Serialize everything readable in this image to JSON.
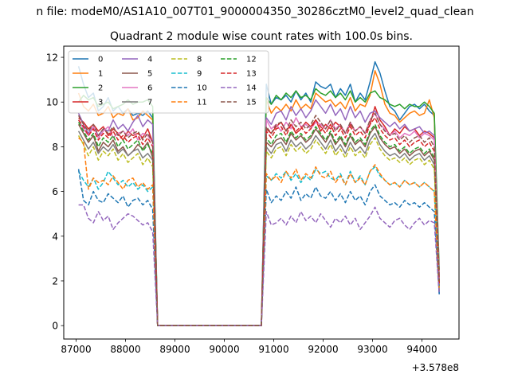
{
  "chart_data": {
    "type": "line",
    "suptitle": "n file: modeM0/AS1A10_007T01_9000004350_30286cztM0_level2_quad_clean",
    "title": "Quadrant 2 module wise count rates with 100.0s bins.",
    "xlabel": "",
    "ylabel": "",
    "offset_text": "+3.578e8",
    "xlim": [
      86750,
      94750
    ],
    "ylim": [
      -0.6,
      12.5
    ],
    "x_ticks": [
      87000,
      88000,
      89000,
      90000,
      91000,
      92000,
      93000,
      94000
    ],
    "x_tick_labels": [
      "87000",
      "88000",
      "89000",
      "90000",
      "91000",
      "92000",
      "93000",
      "94000"
    ],
    "y_ticks": [
      0,
      2,
      4,
      6,
      8,
      10,
      12
    ],
    "y_tick_labels": [
      "0",
      "2",
      "4",
      "6",
      "8",
      "10",
      "12"
    ],
    "grid": false,
    "legend": {
      "placement": "top-left",
      "columns": 4
    },
    "x_start": 87050,
    "x_step": 100,
    "series": [
      {
        "name": "0",
        "color": "#1f77b4",
        "dash": "solid",
        "seg1": [
          11.6,
          10.8,
          10.2,
          10.4,
          9.6,
          9.8,
          10.2,
          9.6,
          9.8,
          9.5,
          9.7,
          9.4,
          9.5,
          9.4,
          9.6,
          9.3
        ],
        "seg2": [
          10.8,
          9.9,
          10.2,
          10.1,
          10.3,
          10.0,
          10.5,
          10.1,
          10.4,
          10.0,
          10.9,
          10.7,
          10.6,
          10.8,
          10.2,
          10.6,
          10.3,
          10.8,
          10.0,
          10.4,
          10.1,
          10.9,
          11.8,
          11.3,
          10.5,
          9.8,
          9.6,
          9.2,
          9.5,
          9.8,
          9.9,
          9.7,
          9.9,
          9.6,
          9.4,
          1.4
        ]
      },
      {
        "name": "1",
        "color": "#ff7f0e",
        "dash": "solid",
        "seg1": [
          10.4,
          9.8,
          9.6,
          9.9,
          9.4,
          9.5,
          9.8,
          9.3,
          9.5,
          9.4,
          9.7,
          9.2,
          9.3,
          9.6,
          9.4,
          9.2
        ],
        "seg2": [
          10.1,
          9.5,
          9.8,
          9.6,
          9.9,
          9.6,
          10.1,
          9.7,
          9.9,
          9.7,
          10.4,
          10.2,
          10.0,
          10.1,
          9.8,
          10.0,
          9.7,
          10.2,
          9.6,
          9.9,
          9.8,
          10.3,
          11.4,
          10.8,
          9.9,
          9.5,
          9.4,
          9.1,
          9.3,
          9.5,
          9.6,
          9.4,
          9.5,
          10.1,
          9.3,
          1.9
        ]
      },
      {
        "name": "2",
        "color": "#2ca02c",
        "dash": "solid",
        "seg1": [
          10.0,
          10.3,
          10.1,
          10.2,
          9.8,
          9.9,
          10.0,
          9.7,
          9.8,
          9.9,
          10.1,
          9.9,
          10.0,
          10.0,
          10.1,
          9.8
        ],
        "seg2": [
          10.2,
          9.9,
          10.3,
          10.1,
          10.4,
          10.2,
          10.5,
          10.2,
          10.3,
          10.1,
          10.6,
          10.4,
          10.3,
          10.5,
          10.2,
          10.4,
          10.1,
          10.5,
          10.0,
          10.2,
          10.0,
          10.4,
          10.5,
          10.2,
          10.1,
          9.9,
          9.8,
          9.9,
          9.7,
          9.9,
          9.8,
          9.8,
          10.0,
          9.8,
          9.5,
          2.5
        ]
      },
      {
        "name": "3",
        "color": "#d62728",
        "dash": "solid",
        "seg1": [
          9.3,
          9.1,
          8.8,
          9.0,
          8.7,
          8.9,
          8.5,
          8.8,
          8.6,
          8.3,
          8.7,
          8.5,
          8.6,
          8.4,
          8.8,
          8.2
        ],
        "seg2": [
          8.8,
          8.6,
          8.9,
          9.1,
          8.7,
          9.0,
          8.6,
          8.8,
          9.1,
          8.9,
          9.2,
          8.7,
          9.0,
          8.8,
          9.1,
          8.9,
          8.6,
          9.0,
          8.7,
          8.9,
          8.6,
          9.0,
          9.8,
          9.2,
          8.9,
          8.5,
          8.8,
          8.6,
          8.9,
          8.7,
          8.8,
          8.5,
          8.7,
          8.6,
          8.4,
          2.2
        ]
      },
      {
        "name": "4",
        "color": "#9467bd",
        "dash": "solid",
        "seg1": [
          9.5,
          9.0,
          8.6,
          8.9,
          8.5,
          8.8,
          8.7,
          9.2,
          8.8,
          9.0,
          8.7,
          9.1,
          9.4,
          8.9,
          9.2,
          9.0
        ],
        "seg2": [
          9.3,
          9.0,
          9.5,
          9.6,
          9.2,
          9.8,
          9.4,
          9.7,
          9.3,
          9.6,
          10.1,
          9.8,
          9.5,
          9.9,
          9.4,
          9.7,
          9.2,
          9.8,
          9.3,
          9.6,
          9.1,
          9.5,
          9.6,
          9.3,
          9.1,
          8.9,
          9.1,
          8.8,
          9.0,
          8.7,
          8.8,
          8.9,
          8.6,
          8.7,
          8.5,
          2.1
        ]
      },
      {
        "name": "5",
        "color": "#8c564b",
        "dash": "solid",
        "seg1": [
          9.0,
          8.6,
          8.2,
          8.5,
          7.8,
          8.2,
          8.0,
          8.3,
          7.8,
          8.0,
          7.6,
          7.8,
          8.1,
          7.9,
          8.2,
          7.5
        ],
        "seg2": [
          8.2,
          8.0,
          8.3,
          8.4,
          8.1,
          8.6,
          8.3,
          8.5,
          8.2,
          8.4,
          8.8,
          8.5,
          8.2,
          8.6,
          8.1,
          8.4,
          8.0,
          8.5,
          8.1,
          8.3,
          8.0,
          8.6,
          8.9,
          8.4,
          8.1,
          7.9,
          8.0,
          7.7,
          7.9,
          7.6,
          7.8,
          7.9,
          7.6,
          7.8,
          7.4,
          1.8
        ]
      },
      {
        "name": "6",
        "color": "#e377c2",
        "dash": "solid",
        "seg1": [
          9.2,
          8.8,
          8.5,
          8.9,
          8.4,
          8.7,
          8.9,
          8.4,
          8.6,
          8.7,
          8.5,
          8.8,
          8.3,
          8.6,
          8.5,
          8.2
        ],
        "seg2": [
          9.2,
          8.8,
          9.0,
          8.7,
          9.1,
          8.8,
          9.3,
          8.9,
          9.0,
          8.8,
          9.1,
          9.0,
          8.8,
          9.2,
          8.8,
          9.0,
          8.6,
          9.1,
          8.7,
          8.9,
          8.6,
          9.2,
          9.5,
          9.0,
          8.8,
          8.5,
          8.7,
          8.4,
          8.6,
          8.5,
          8.7,
          8.4,
          8.6,
          8.5,
          8.3,
          2.0
        ]
      },
      {
        "name": "7",
        "color": "#7f7f7f",
        "dash": "solid",
        "seg1": [
          8.7,
          8.3,
          7.9,
          8.2,
          7.7,
          8.0,
          7.8,
          8.1,
          7.7,
          7.9,
          7.6,
          7.8,
          7.9,
          7.5,
          7.7,
          7.4
        ],
        "seg2": [
          8.0,
          7.7,
          8.1,
          8.2,
          7.8,
          8.3,
          8.0,
          8.2,
          7.9,
          8.1,
          8.5,
          8.2,
          7.9,
          8.3,
          7.8,
          8.1,
          7.7,
          8.2,
          7.8,
          8.0,
          7.7,
          8.3,
          8.6,
          8.1,
          7.8,
          7.6,
          7.7,
          7.5,
          7.7,
          7.4,
          7.6,
          7.7,
          7.4,
          7.6,
          7.2,
          1.7
        ]
      },
      {
        "name": "8",
        "color": "#bcbd22",
        "dash": "dashed",
        "seg1": [
          8.5,
          8.1,
          7.6,
          8.0,
          7.4,
          7.8,
          7.6,
          7.9,
          7.4,
          7.7,
          7.3,
          7.5,
          7.7,
          7.2,
          7.5,
          7.1
        ],
        "seg2": [
          7.8,
          7.5,
          7.9,
          8.0,
          7.6,
          8.1,
          7.8,
          8.0,
          7.7,
          7.9,
          8.3,
          8.0,
          7.7,
          8.1,
          7.6,
          7.9,
          7.5,
          8.0,
          7.6,
          7.8,
          7.5,
          8.1,
          8.4,
          7.9,
          7.6,
          7.4,
          7.5,
          7.3,
          7.5,
          7.2,
          7.4,
          7.5,
          7.2,
          7.4,
          7.0,
          1.6
        ]
      },
      {
        "name": "9",
        "color": "#17becf",
        "dash": "dashed",
        "seg1": [
          6.9,
          6.5,
          6.2,
          6.6,
          6.1,
          6.4,
          6.9,
          6.6,
          6.3,
          6.5,
          6.2,
          6.4,
          6.1,
          6.3,
          6.0,
          6.2
        ],
        "seg2": [
          6.7,
          6.5,
          6.8,
          6.6,
          6.9,
          6.5,
          6.8,
          6.4,
          6.7,
          6.5,
          7.0,
          6.8,
          6.9,
          6.6,
          6.5,
          6.8,
          6.3,
          6.9,
          6.4,
          6.7,
          6.3,
          6.9,
          7.1,
          6.7,
          6.5,
          6.3,
          6.4,
          6.2,
          6.5,
          6.3,
          6.4,
          6.2,
          6.4,
          6.2,
          6.0,
          1.5
        ]
      },
      {
        "name": "10",
        "color": "#1f77b4",
        "dash": "dashed",
        "seg1": [
          7.0,
          5.6,
          5.4,
          6.0,
          5.6,
          5.5,
          5.9,
          5.7,
          5.5,
          5.8,
          5.3,
          5.6,
          5.7,
          5.4,
          5.6,
          5.2
        ],
        "seg2": [
          6.1,
          5.5,
          5.8,
          5.6,
          6.0,
          5.7,
          6.2,
          5.6,
          5.9,
          5.7,
          6.2,
          5.8,
          5.7,
          6.0,
          5.6,
          5.9,
          5.5,
          6.0,
          5.6,
          5.8,
          5.4,
          6.0,
          6.3,
          5.8,
          5.6,
          5.4,
          5.5,
          5.3,
          5.6,
          5.4,
          5.5,
          5.3,
          5.5,
          5.3,
          5.1,
          1.4
        ]
      },
      {
        "name": "11",
        "color": "#ff7f0e",
        "dash": "dashed",
        "seg1": [
          8.4,
          8.2,
          6.1,
          6.6,
          6.4,
          6.5,
          6.3,
          6.7,
          6.4,
          6.1,
          6.5,
          6.6,
          6.2,
          6.4,
          6.1,
          6.3
        ],
        "seg2": [
          6.8,
          6.5,
          6.7,
          6.4,
          6.9,
          6.6,
          7.0,
          6.5,
          6.8,
          6.6,
          7.1,
          6.7,
          6.6,
          6.9,
          6.4,
          6.7,
          6.3,
          6.8,
          6.4,
          6.6,
          6.3,
          6.9,
          7.2,
          6.8,
          6.5,
          6.3,
          6.4,
          6.2,
          6.5,
          6.3,
          6.4,
          6.2,
          6.4,
          6.2,
          6.0,
          1.5
        ]
      },
      {
        "name": "12",
        "color": "#2ca02c",
        "dash": "dashed",
        "seg1": [
          9.1,
          8.7,
          8.3,
          8.6,
          8.0,
          8.4,
          8.2,
          8.5,
          8.0,
          8.3,
          7.9,
          8.1,
          8.3,
          7.8,
          8.1,
          7.7
        ],
        "seg2": [
          8.4,
          8.1,
          8.5,
          8.6,
          8.2,
          8.7,
          8.4,
          8.6,
          8.3,
          8.5,
          8.9,
          8.6,
          8.3,
          8.7,
          8.2,
          8.5,
          8.1,
          8.6,
          8.2,
          8.4,
          8.1,
          8.7,
          9.0,
          8.5,
          8.2,
          8.0,
          8.1,
          7.8,
          8.0,
          7.7,
          7.9,
          8.0,
          7.7,
          7.9,
          7.5,
          1.8
        ]
      },
      {
        "name": "13",
        "color": "#d62728",
        "dash": "dashed",
        "seg1": [
          9.2,
          8.9,
          8.5,
          8.8,
          8.3,
          8.6,
          8.4,
          8.7,
          8.3,
          8.5,
          8.2,
          8.4,
          8.5,
          8.1,
          8.4,
          8.0
        ],
        "seg2": [
          8.7,
          8.4,
          8.8,
          8.9,
          8.5,
          9.0,
          8.7,
          8.9,
          8.6,
          8.8,
          9.2,
          8.9,
          8.6,
          9.0,
          8.5,
          8.8,
          8.4,
          8.9,
          8.5,
          8.7,
          8.4,
          9.0,
          9.3,
          8.8,
          8.5,
          8.3,
          8.4,
          8.1,
          8.3,
          8.0,
          8.2,
          8.3,
          8.0,
          8.2,
          7.8,
          1.9
        ]
      },
      {
        "name": "14",
        "color": "#9467bd",
        "dash": "dashed",
        "seg1": [
          5.4,
          5.4,
          4.8,
          4.6,
          5.1,
          4.7,
          4.9,
          4.3,
          4.6,
          4.8,
          5.0,
          4.9,
          4.7,
          4.5,
          4.6,
          4.2
        ],
        "seg2": [
          5.1,
          4.5,
          4.6,
          4.8,
          4.5,
          4.9,
          4.6,
          5.1,
          4.7,
          4.9,
          4.6,
          5.0,
          4.7,
          4.4,
          4.8,
          4.6,
          4.9,
          4.5,
          4.8,
          4.3,
          4.6,
          4.9,
          5.3,
          4.8,
          4.6,
          4.4,
          4.7,
          4.8,
          4.5,
          4.3,
          4.6,
          4.8,
          4.5,
          4.7,
          4.6,
          1.4
        ]
      },
      {
        "name": "15",
        "color": "#8c564b",
        "dash": "dashed",
        "seg1": [
          9.4,
          9.0,
          8.7,
          9.0,
          8.5,
          8.8,
          8.6,
          8.9,
          8.5,
          8.7,
          8.4,
          8.6,
          8.7,
          8.3,
          8.6,
          8.2
        ],
        "seg2": [
          8.9,
          8.6,
          9.0,
          9.1,
          8.7,
          9.2,
          8.9,
          9.1,
          8.8,
          9.0,
          9.4,
          9.1,
          8.8,
          9.2,
          8.7,
          9.0,
          8.6,
          9.1,
          8.7,
          8.9,
          8.6,
          9.2,
          9.5,
          9.0,
          8.7,
          8.5,
          8.6,
          8.3,
          8.5,
          8.2,
          8.4,
          8.5,
          8.2,
          8.4,
          8.0,
          2.0
        ]
      }
    ]
  }
}
